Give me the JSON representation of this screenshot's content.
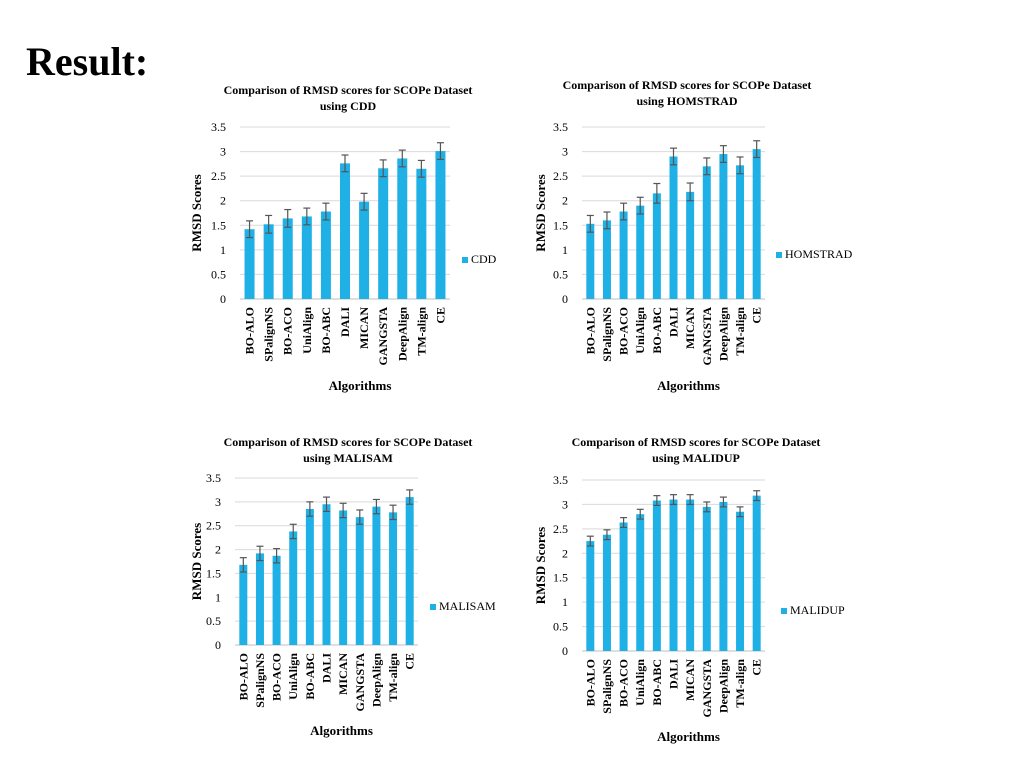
{
  "slide": {
    "title": "Result:"
  },
  "colors": {
    "bar": "#1fb0e6",
    "errorbar": "#555555",
    "gridline": "#d9d9d9",
    "axis": "#bfbfbf"
  },
  "chart_data": [
    {
      "type": "bar",
      "title_line1": "Comparison of RMSD scores for SCOPe Dataset",
      "title_line2": "using CDD",
      "xlabel": "Algorithms",
      "ylabel": "RMSD Scores",
      "legend": "CDD",
      "legend_position": "right",
      "ylim": [
        0,
        3.5
      ],
      "yticks": [
        "0",
        "0.5",
        "1",
        "1.5",
        "2",
        "2.5",
        "3",
        "3.5"
      ],
      "categories": [
        "BO-ALO",
        "SPalignNS",
        "BO-ACO",
        "UniAlign",
        "BO-ABC",
        "DALI",
        "MICAN",
        "GANGSTA",
        "DeepAlign",
        "TM-align",
        "CE"
      ],
      "values": [
        1.42,
        1.52,
        1.64,
        1.68,
        1.78,
        2.76,
        1.98,
        2.66,
        2.86,
        2.65,
        3.01
      ],
      "errors": [
        0.17,
        0.18,
        0.18,
        0.17,
        0.17,
        0.17,
        0.17,
        0.17,
        0.17,
        0.17,
        0.17
      ],
      "grid": true
    },
    {
      "type": "bar",
      "title_line1": "Comparison of RMSD scores for SCOPe Dataset",
      "title_line2": "using HOMSTRAD",
      "xlabel": "Algorithms",
      "ylabel": "RMSD Scores",
      "legend": "HOMSTRAD",
      "legend_position": "right",
      "ylim": [
        0,
        3.5
      ],
      "yticks": [
        "0",
        "0.5",
        "1",
        "1.5",
        "2",
        "2.5",
        "3",
        "3.5"
      ],
      "categories": [
        "BO-ALO",
        "SPalignNS",
        "BO-ACO",
        "UniAlign",
        "BO-ABC",
        "DALI",
        "MICAN",
        "GANGSTA",
        "DeepAlign",
        "TM-align",
        "CE"
      ],
      "values": [
        1.53,
        1.6,
        1.78,
        1.9,
        2.15,
        2.9,
        2.18,
        2.7,
        2.95,
        2.72,
        3.05
      ],
      "errors": [
        0.17,
        0.17,
        0.17,
        0.17,
        0.2,
        0.17,
        0.18,
        0.17,
        0.17,
        0.17,
        0.17
      ],
      "grid": true
    },
    {
      "type": "bar",
      "title_line1": "Comparison of RMSD scores for SCOPe Dataset",
      "title_line2": "using MALISAM",
      "xlabel": "Algorithms",
      "ylabel": "RMSD Scores",
      "legend": "MALISAM",
      "legend_position": "right",
      "ylim": [
        0,
        3.5
      ],
      "yticks": [
        "0",
        "0.5",
        "1",
        "1.5",
        "2",
        "2.5",
        "3",
        "3.5"
      ],
      "categories": [
        "BO-ALO",
        "SPalignNS",
        "BO-ACO",
        "UniAlign",
        "BO-ABC",
        "DALI",
        "MICAN",
        "GANGSTA",
        "DeepAlign",
        "TM-align",
        "CE"
      ],
      "values": [
        1.68,
        1.92,
        1.87,
        2.38,
        2.85,
        2.95,
        2.82,
        2.68,
        2.9,
        2.78,
        3.1
      ],
      "errors": [
        0.15,
        0.15,
        0.15,
        0.15,
        0.15,
        0.15,
        0.15,
        0.15,
        0.15,
        0.15,
        0.15
      ],
      "grid": true
    },
    {
      "type": "bar",
      "title_line1": "Comparison of RMSD scores for SCOPe Dataset",
      "title_line2": "using MALIDUP",
      "xlabel": "Algorithms",
      "ylabel": "RMSD Scores",
      "legend": "MALIDUP",
      "legend_position": "right",
      "ylim": [
        0,
        3.5
      ],
      "yticks": [
        "0",
        "0.5",
        "1",
        "1.5",
        "2",
        "2.5",
        "3",
        "3.5"
      ],
      "categories": [
        "BO-ALO",
        "SPalignNS",
        "BO-ACO",
        "UniAlign",
        "BO-ABC",
        "DALI",
        "MICAN",
        "GANGSTA",
        "DeepAlign",
        "TM-align",
        "CE"
      ],
      "values": [
        2.25,
        2.38,
        2.63,
        2.8,
        3.08,
        3.1,
        3.1,
        2.95,
        3.05,
        2.85,
        3.18
      ],
      "errors": [
        0.1,
        0.1,
        0.1,
        0.1,
        0.1,
        0.1,
        0.1,
        0.1,
        0.1,
        0.1,
        0.1
      ],
      "grid": true
    }
  ]
}
